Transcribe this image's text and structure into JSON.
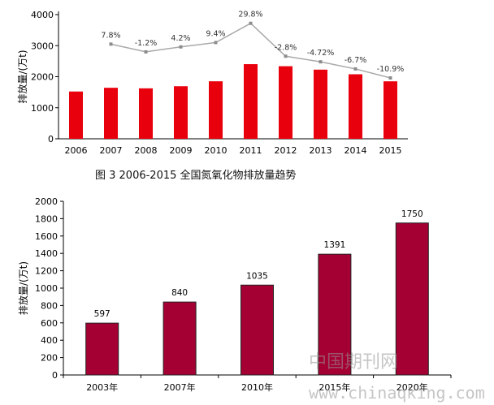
{
  "caption": "图 3   2006-2015 全国氮氧化物排放量趋势",
  "watermark": {
    "cn": "中国期刊网",
    "url": "www.chinaqking.com"
  },
  "chart_data": [
    {
      "type": "bar",
      "categories": [
        "2006",
        "2007",
        "2008",
        "2009",
        "2010",
        "2011",
        "2012",
        "2013",
        "2014",
        "2015"
      ],
      "series": [
        {
          "values": [
            1523,
            1643,
            1625,
            1693,
            1852,
            2404,
            2338,
            2227,
            2078,
            1851
          ],
          "color": "#e8000d"
        },
        {
          "type": "line",
          "values": [
            null,
            3050,
            2800,
            2960,
            3100,
            3720,
            2660,
            2480,
            2250,
            1960
          ],
          "labels": [
            null,
            "7.8%",
            "-1.2%",
            "4.2%",
            "9.4%",
            "29.8%",
            "-2.8%",
            "-4.72%",
            "-6.7%",
            "-10.9%"
          ],
          "color": "#a9a9a9"
        }
      ],
      "ylabel": "排放量/(万t)",
      "ylim": [
        0,
        4000
      ],
      "yticks": [
        0,
        1000,
        2000,
        3000,
        4000
      ],
      "grid": false
    },
    {
      "type": "bar",
      "categories": [
        "2003年",
        "2007年",
        "2010年",
        "2015年",
        "2020年"
      ],
      "values": [
        597,
        840,
        1035,
        1391,
        1750
      ],
      "labels": [
        "597",
        "840",
        "1035",
        "1391",
        "1750"
      ],
      "color": "#a50034",
      "ylabel": "排放量/(万t)",
      "ylim": [
        0,
        2000
      ],
      "yticks": [
        0,
        200,
        400,
        600,
        800,
        1000,
        1200,
        1400,
        1600,
        1800,
        2000
      ],
      "grid": false
    }
  ]
}
